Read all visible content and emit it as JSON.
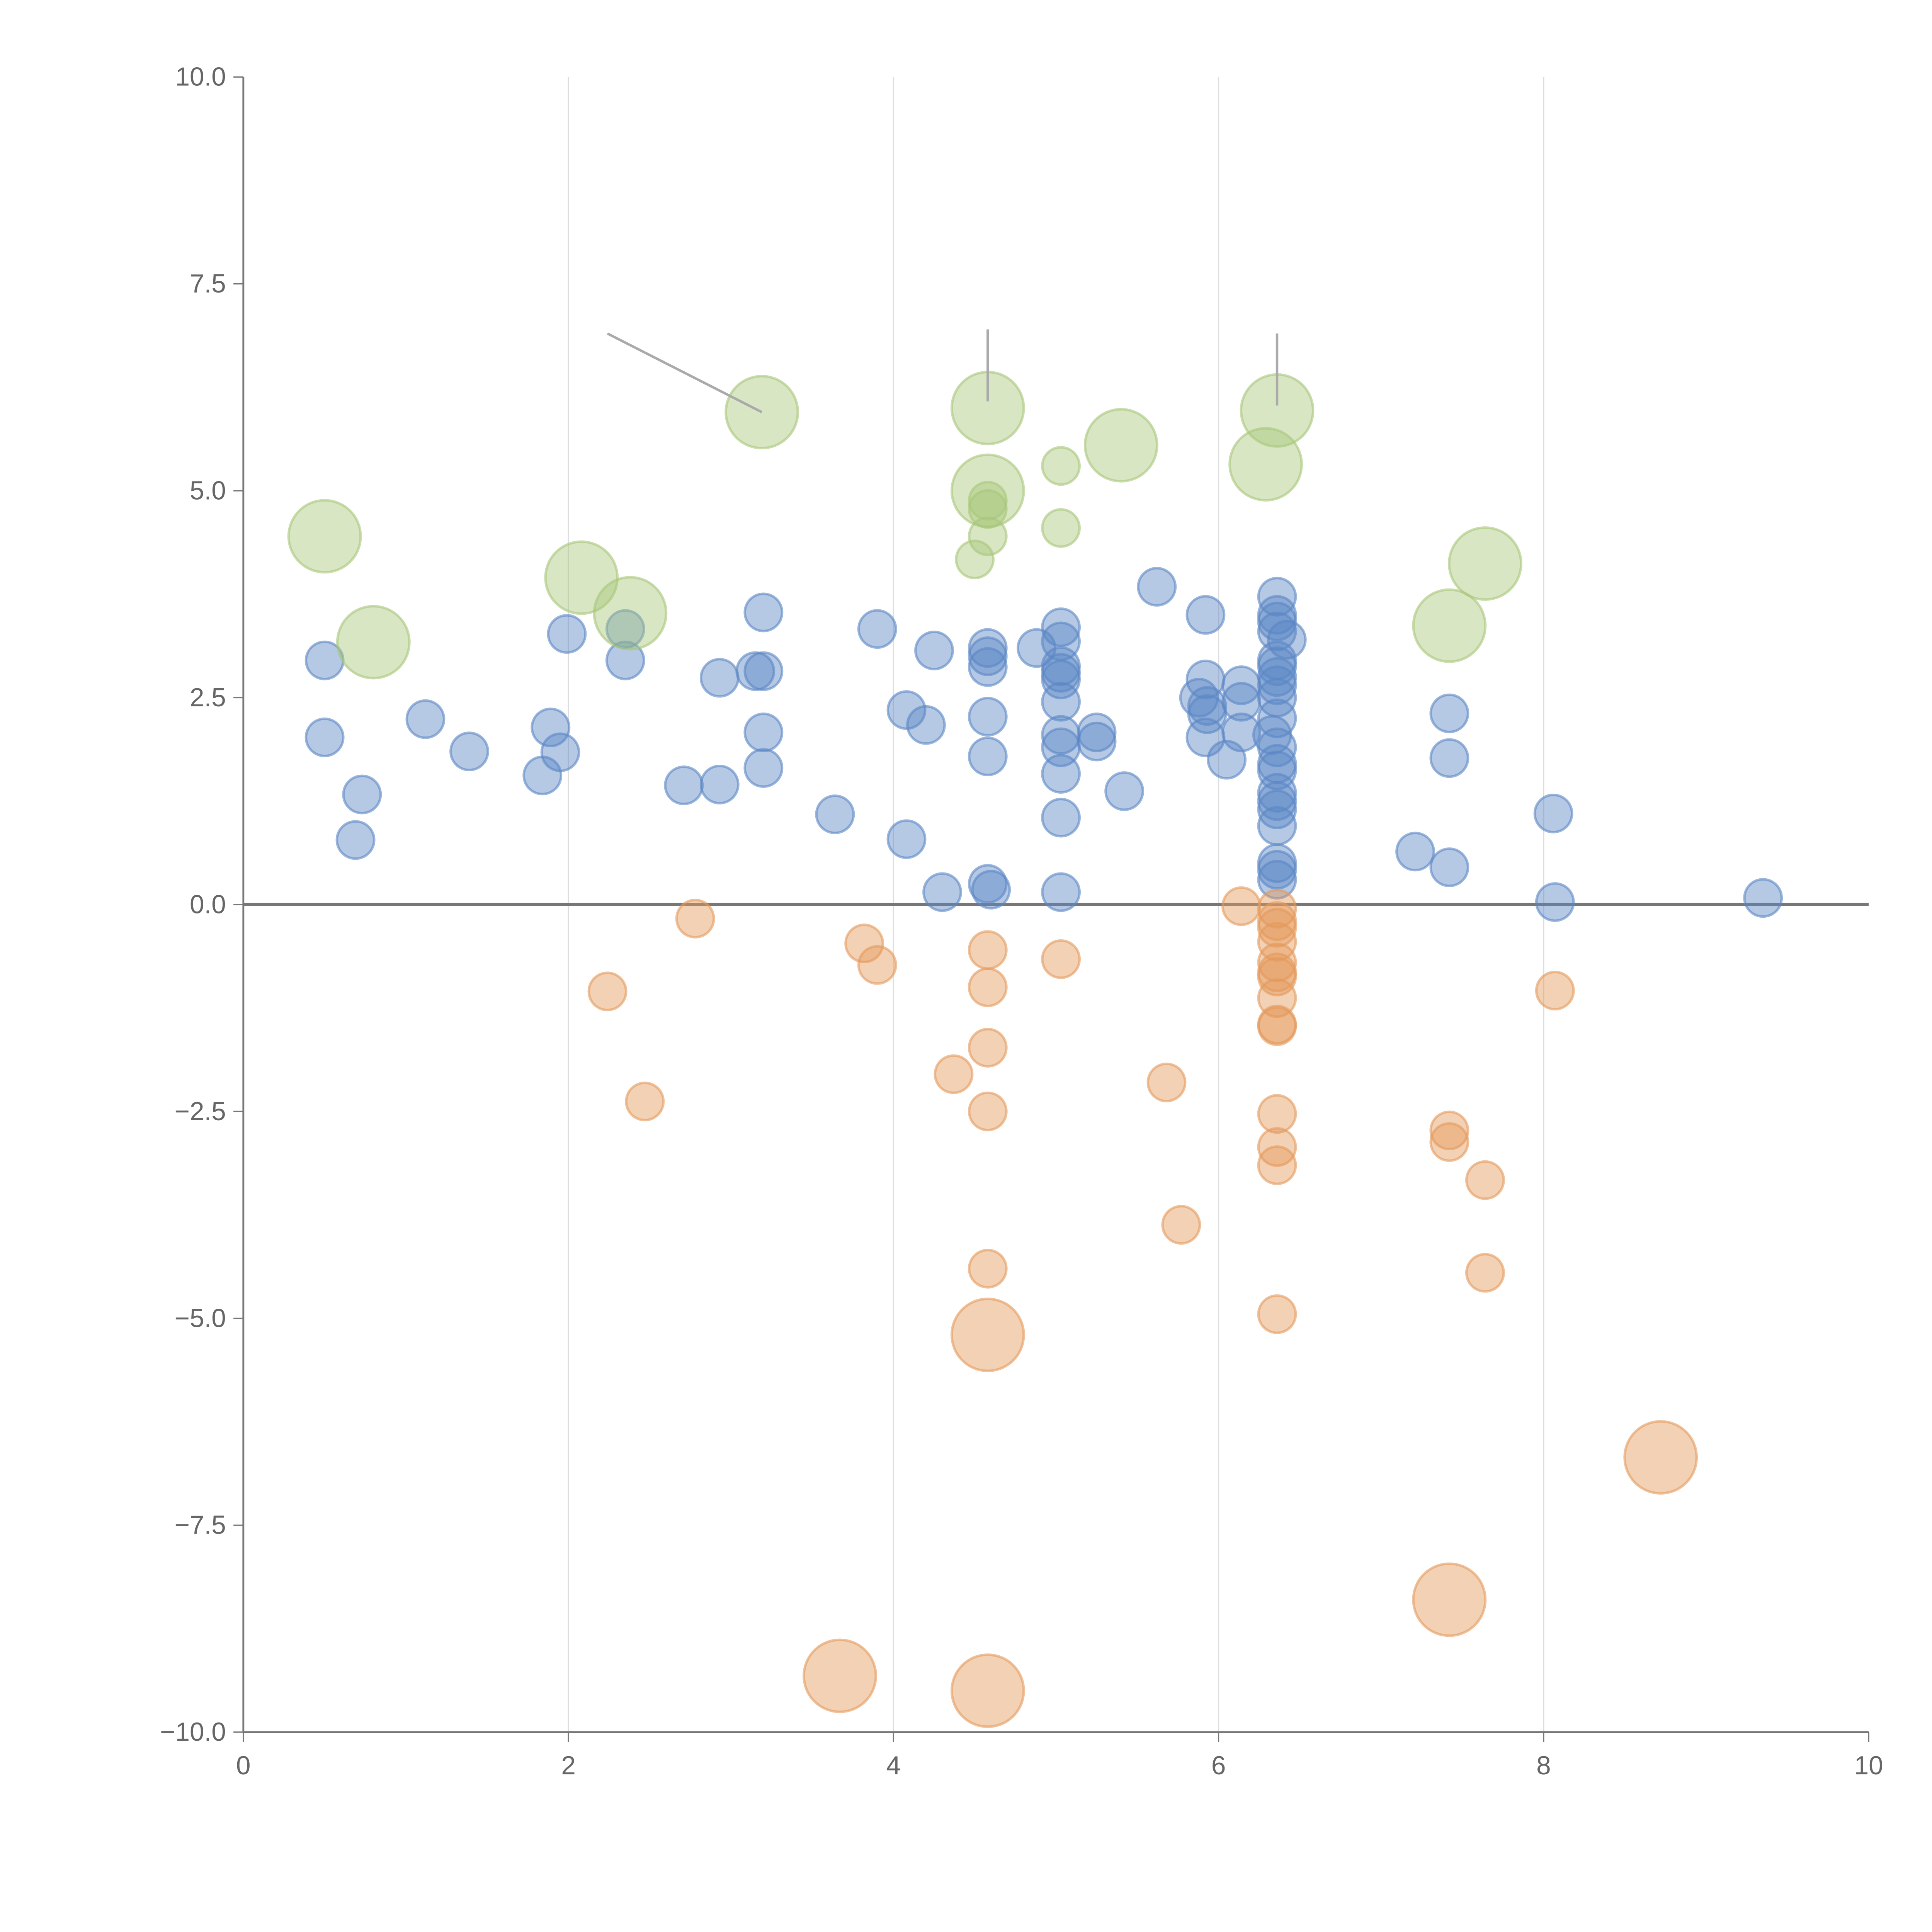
{
  "chart_data": {
    "type": "scatter",
    "title": "",
    "xlabel": "",
    "ylabel": "",
    "xlim": [
      0,
      10
    ],
    "ylim": [
      -10,
      10
    ],
    "x_ticks": [
      "0",
      "2",
      "4",
      "6",
      "8",
      "10"
    ],
    "x_tick_values": [
      0,
      2,
      4,
      6,
      8,
      10
    ],
    "y_ticks": [
      "10.0",
      "7.5",
      "5.0",
      "2.5",
      "0.0",
      "−2.5",
      "−5.0",
      "−7.5",
      "−10.0"
    ],
    "y_tick_values": [
      10,
      7.5,
      5,
      2.5,
      0,
      -2.5,
      -5,
      -7.5,
      -10
    ],
    "grid": "vertical",
    "reference_line_y": 0,
    "series": [
      {
        "name": "blue",
        "color": "#5b87c5",
        "points": [
          [
            0.5,
            2.95,
            1
          ],
          [
            0.5,
            2.02,
            1
          ],
          [
            0.73,
            1.33,
            1
          ],
          [
            0.69,
            0.78,
            1
          ],
          [
            1.12,
            2.24,
            1
          ],
          [
            1.39,
            1.85,
            1
          ],
          [
            1.99,
            3.27,
            1
          ],
          [
            1.89,
            2.14,
            1
          ],
          [
            1.95,
            1.84,
            1
          ],
          [
            1.84,
            1.56,
            1
          ],
          [
            2.35,
            3.33,
            1
          ],
          [
            2.35,
            2.95,
            1
          ],
          [
            2.71,
            1.44,
            1
          ],
          [
            2.93,
            2.74,
            1
          ],
          [
            2.93,
            1.45,
            1
          ],
          [
            3.15,
            2.82,
            1
          ],
          [
            3.2,
            2.82,
            1
          ],
          [
            3.2,
            3.53,
            1
          ],
          [
            3.2,
            2.08,
            1
          ],
          [
            3.2,
            1.65,
            1
          ],
          [
            3.64,
            1.09,
            1
          ],
          [
            3.9,
            3.33,
            1
          ],
          [
            4.08,
            2.35,
            1
          ],
          [
            4.08,
            0.79,
            1
          ],
          [
            4.2,
            2.17,
            1
          ],
          [
            4.25,
            3.07,
            1
          ],
          [
            4.3,
            0.15,
            1
          ],
          [
            4.58,
            3.1,
            1
          ],
          [
            4.58,
            3.0,
            1
          ],
          [
            4.58,
            2.87,
            1
          ],
          [
            4.58,
            2.27,
            1
          ],
          [
            4.58,
            1.79,
            1
          ],
          [
            4.58,
            0.25,
            1
          ],
          [
            4.6,
            0.18,
            1
          ],
          [
            4.88,
            3.1,
            1
          ],
          [
            5.03,
            3.35,
            1
          ],
          [
            5.03,
            3.18,
            1
          ],
          [
            5.03,
            2.88,
            1
          ],
          [
            5.03,
            2.8,
            1
          ],
          [
            5.03,
            2.72,
            1
          ],
          [
            5.03,
            2.45,
            1
          ],
          [
            5.03,
            2.05,
            1
          ],
          [
            5.03,
            1.9,
            1
          ],
          [
            5.03,
            1.58,
            1
          ],
          [
            5.03,
            1.05,
            1
          ],
          [
            5.03,
            0.15,
            1
          ],
          [
            5.25,
            2.08,
            1
          ],
          [
            5.25,
            1.97,
            1
          ],
          [
            5.42,
            1.37,
            1
          ],
          [
            5.62,
            3.84,
            1
          ],
          [
            5.92,
            3.5,
            1
          ],
          [
            5.92,
            2.72,
            1
          ],
          [
            5.88,
            2.5,
            1
          ],
          [
            5.93,
            2.4,
            1
          ],
          [
            5.93,
            2.3,
            1
          ],
          [
            5.92,
            2.02,
            1
          ],
          [
            6.05,
            1.75,
            1
          ],
          [
            6.14,
            2.65,
            1
          ],
          [
            6.14,
            2.45,
            1
          ],
          [
            6.14,
            2.08,
            1
          ],
          [
            6.36,
            3.72,
            1
          ],
          [
            6.36,
            3.5,
            1
          ],
          [
            6.36,
            3.42,
            1
          ],
          [
            6.36,
            3.3,
            1
          ],
          [
            6.42,
            3.2,
            1
          ],
          [
            6.36,
            2.95,
            1
          ],
          [
            6.36,
            2.88,
            1
          ],
          [
            6.36,
            2.75,
            1
          ],
          [
            6.36,
            2.65,
            1
          ],
          [
            6.36,
            2.5,
            1
          ],
          [
            6.36,
            2.25,
            1
          ],
          [
            6.33,
            2.05,
            1
          ],
          [
            6.36,
            1.9,
            1
          ],
          [
            6.36,
            1.7,
            1
          ],
          [
            6.36,
            1.62,
            1
          ],
          [
            6.36,
            1.35,
            1
          ],
          [
            6.36,
            1.25,
            1
          ],
          [
            6.36,
            1.15,
            1
          ],
          [
            6.36,
            0.95,
            1
          ],
          [
            6.36,
            0.5,
            1
          ],
          [
            6.36,
            0.42,
            1
          ],
          [
            6.36,
            0.3,
            1
          ],
          [
            7.21,
            0.64,
            1
          ],
          [
            7.42,
            2.31,
            1
          ],
          [
            7.42,
            1.77,
            1
          ],
          [
            7.42,
            0.45,
            1
          ],
          [
            8.06,
            1.1,
            1
          ],
          [
            8.07,
            0.03,
            1
          ],
          [
            9.35,
            0.08,
            1
          ]
        ]
      },
      {
        "name": "orange",
        "color": "#e59a5c",
        "points": [
          [
            2.24,
            -1.05,
            1
          ],
          [
            2.47,
            -2.38,
            1
          ],
          [
            2.78,
            -0.17,
            1
          ],
          [
            3.82,
            -0.47,
            1
          ],
          [
            3.9,
            -0.73,
            1
          ],
          [
            4.37,
            -2.05,
            1
          ],
          [
            4.58,
            -0.55,
            1
          ],
          [
            4.58,
            -1.0,
            1
          ],
          [
            4.58,
            -1.73,
            1
          ],
          [
            4.58,
            -2.5,
            1
          ],
          [
            4.58,
            -4.4,
            1
          ],
          [
            5.03,
            -0.66,
            1
          ],
          [
            5.68,
            -2.15,
            1
          ],
          [
            5.77,
            -3.87,
            1
          ],
          [
            6.14,
            -0.02,
            1
          ],
          [
            6.36,
            -0.05,
            1
          ],
          [
            6.36,
            -0.2,
            1
          ],
          [
            6.36,
            -0.28,
            1
          ],
          [
            6.36,
            -0.45,
            1
          ],
          [
            6.36,
            -0.7,
            1
          ],
          [
            6.36,
            -0.82,
            1
          ],
          [
            6.36,
            -0.87,
            1
          ],
          [
            6.36,
            -1.13,
            1
          ],
          [
            6.36,
            -1.45,
            1
          ],
          [
            6.36,
            -1.47,
            1
          ],
          [
            6.36,
            -2.53,
            1
          ],
          [
            6.36,
            -2.93,
            1
          ],
          [
            6.36,
            -3.15,
            1
          ],
          [
            6.36,
            -4.95,
            1
          ],
          [
            7.42,
            -2.73,
            1
          ],
          [
            7.42,
            -2.87,
            1
          ],
          [
            7.64,
            -3.33,
            1
          ],
          [
            7.64,
            -4.45,
            1
          ],
          [
            8.07,
            -1.04,
            1
          ],
          [
            4.58,
            -5.2,
            2
          ],
          [
            3.67,
            -9.32,
            2
          ],
          [
            4.58,
            -9.5,
            2
          ],
          [
            7.42,
            -8.4,
            2
          ],
          [
            8.72,
            -6.68,
            2
          ]
        ]
      },
      {
        "name": "green",
        "color": "#a8c77a",
        "points": [
          [
            0.5,
            4.45,
            2
          ],
          [
            0.8,
            3.17,
            2
          ],
          [
            2.08,
            3.95,
            2
          ],
          [
            2.38,
            3.52,
            2
          ],
          [
            3.19,
            5.95,
            2
          ],
          [
            4.58,
            6.0,
            2
          ],
          [
            4.58,
            5.0,
            2
          ],
          [
            4.58,
            4.88,
            1
          ],
          [
            4.58,
            4.78,
            1
          ],
          [
            4.58,
            4.45,
            1
          ],
          [
            4.5,
            4.17,
            1
          ],
          [
            5.03,
            5.3,
            1
          ],
          [
            5.03,
            4.55,
            1
          ],
          [
            5.4,
            5.55,
            2
          ],
          [
            6.36,
            5.97,
            2
          ],
          [
            6.29,
            5.32,
            2
          ],
          [
            7.64,
            4.12,
            2
          ],
          [
            7.42,
            3.37,
            2
          ]
        ]
      }
    ],
    "leader_lines": [
      [
        2.24,
        6.9,
        3.19,
        5.95
      ],
      [
        4.58,
        6.95,
        4.58,
        6.08
      ],
      [
        6.36,
        6.9,
        6.36,
        6.03
      ]
    ]
  }
}
